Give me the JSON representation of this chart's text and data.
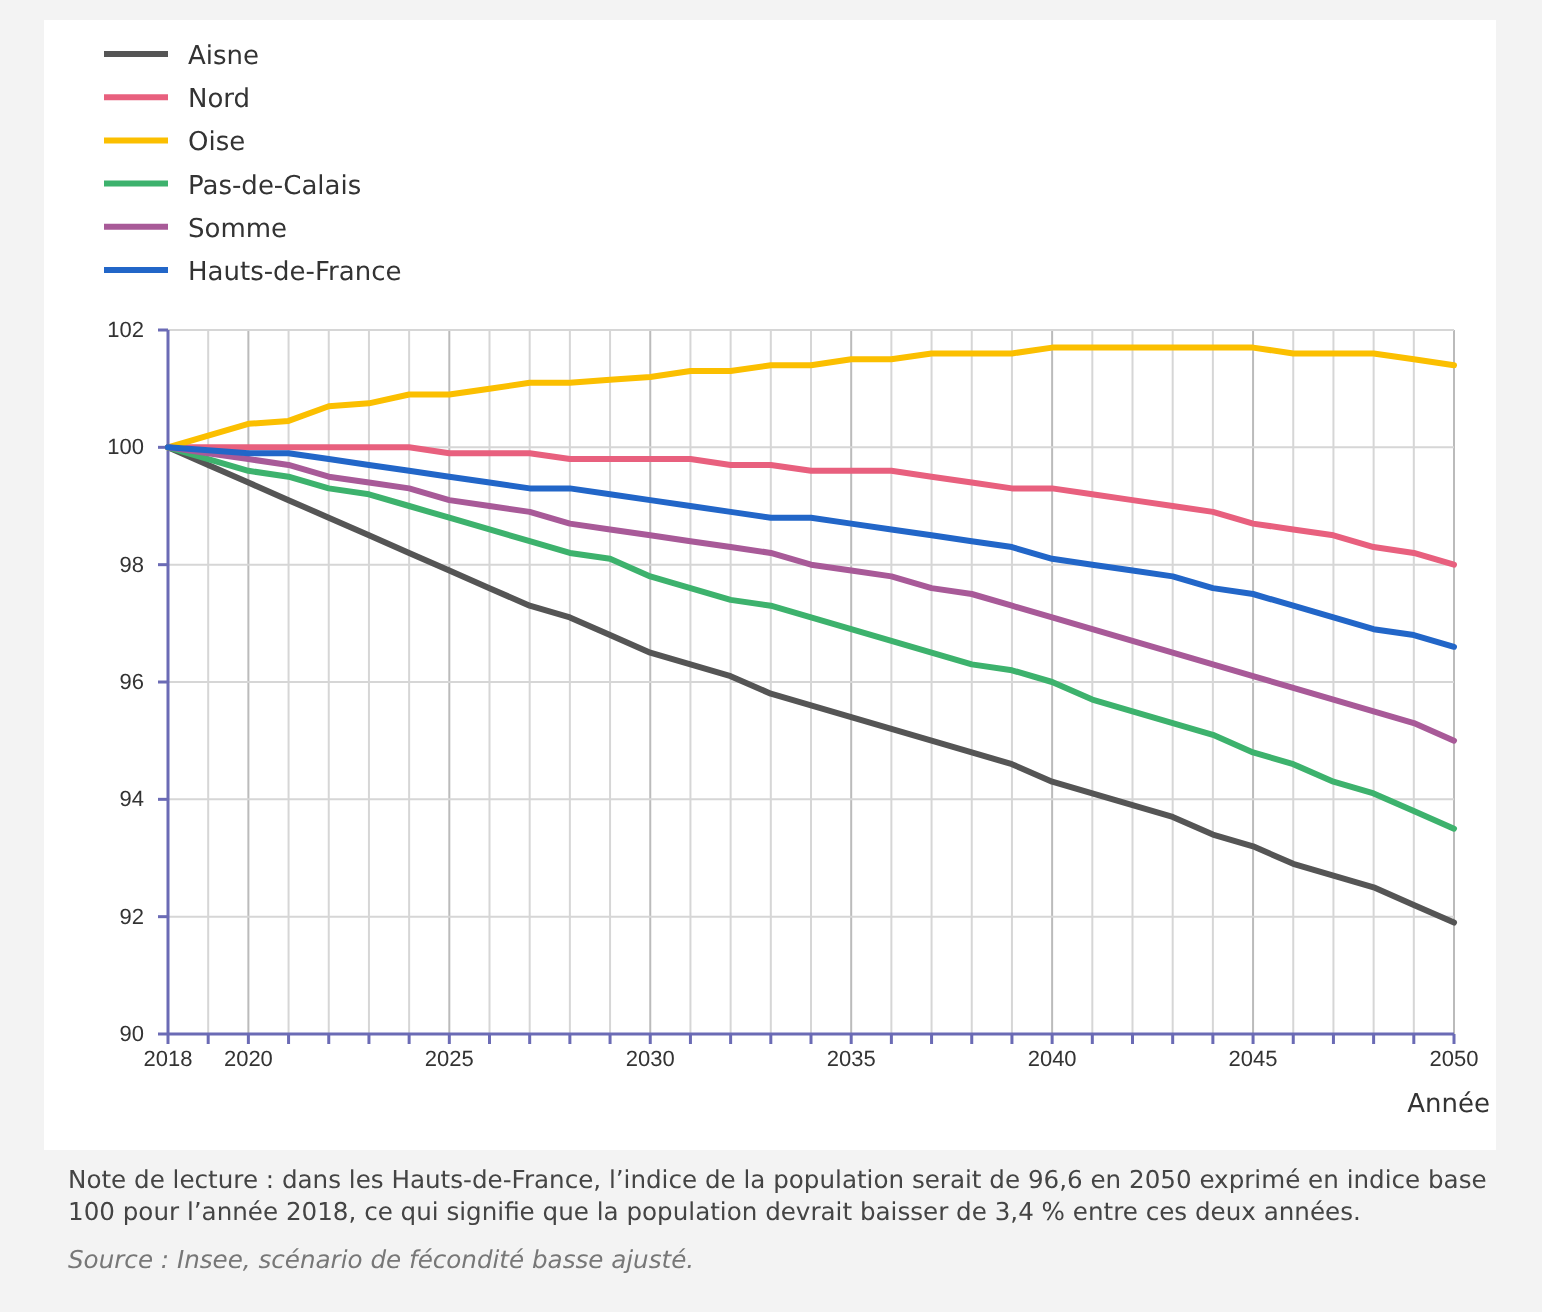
{
  "chart_data": {
    "type": "line",
    "xlabel": "Année",
    "x": [
      2018,
      2019,
      2020,
      2021,
      2022,
      2023,
      2024,
      2025,
      2026,
      2027,
      2028,
      2029,
      2030,
      2031,
      2032,
      2033,
      2034,
      2035,
      2036,
      2037,
      2038,
      2039,
      2040,
      2041,
      2042,
      2043,
      2044,
      2045,
      2046,
      2047,
      2048,
      2049,
      2050
    ],
    "series": [
      {
        "name": "Aisne",
        "color": "#555555",
        "values": [
          100,
          99.7,
          99.4,
          99.1,
          98.8,
          98.5,
          98.2,
          97.9,
          97.6,
          97.3,
          97.1,
          96.8,
          96.5,
          96.3,
          96.1,
          95.8,
          95.6,
          95.4,
          95.2,
          95.0,
          94.8,
          94.6,
          94.3,
          94.1,
          93.9,
          93.7,
          93.4,
          93.2,
          92.9,
          92.7,
          92.5,
          92.2,
          91.9
        ]
      },
      {
        "name": "Nord",
        "color": "#e8607e",
        "values": [
          100,
          100,
          100,
          100,
          100,
          100,
          100,
          99.9,
          99.9,
          99.9,
          99.8,
          99.8,
          99.8,
          99.8,
          99.7,
          99.7,
          99.6,
          99.6,
          99.6,
          99.5,
          99.4,
          99.3,
          99.3,
          99.2,
          99.1,
          99.0,
          98.9,
          98.7,
          98.6,
          98.5,
          98.3,
          98.2,
          98.0
        ]
      },
      {
        "name": "Oise",
        "color": "#fbbf00",
        "values": [
          100,
          100.2,
          100.4,
          100.45,
          100.7,
          100.75,
          100.9,
          100.9,
          101.0,
          101.1,
          101.1,
          101.15,
          101.2,
          101.3,
          101.3,
          101.4,
          101.4,
          101.5,
          101.5,
          101.6,
          101.6,
          101.6,
          101.7,
          101.7,
          101.7,
          101.7,
          101.7,
          101.7,
          101.6,
          101.6,
          101.6,
          101.5,
          101.4
        ]
      },
      {
        "name": "Pas-de-Calais",
        "color": "#3db26d",
        "values": [
          100,
          99.8,
          99.6,
          99.5,
          99.3,
          99.2,
          99.0,
          98.8,
          98.6,
          98.4,
          98.2,
          98.1,
          97.8,
          97.6,
          97.4,
          97.3,
          97.1,
          96.9,
          96.7,
          96.5,
          96.3,
          96.2,
          96.0,
          95.7,
          95.5,
          95.3,
          95.1,
          94.8,
          94.6,
          94.3,
          94.1,
          93.8,
          93.5
        ]
      },
      {
        "name": "Somme",
        "color": "#a85a98",
        "values": [
          100,
          99.9,
          99.8,
          99.7,
          99.5,
          99.4,
          99.3,
          99.1,
          99.0,
          98.9,
          98.7,
          98.6,
          98.5,
          98.4,
          98.3,
          98.2,
          98.0,
          97.9,
          97.8,
          97.6,
          97.5,
          97.3,
          97.1,
          96.9,
          96.7,
          96.5,
          96.3,
          96.1,
          95.9,
          95.7,
          95.5,
          95.3,
          95.0
        ]
      },
      {
        "name": "Hauts-de-France",
        "color": "#2266c8",
        "values": [
          100,
          99.95,
          99.9,
          99.9,
          99.8,
          99.7,
          99.6,
          99.5,
          99.4,
          99.3,
          99.3,
          99.2,
          99.1,
          99.0,
          98.9,
          98.8,
          98.8,
          98.7,
          98.6,
          98.5,
          98.4,
          98.3,
          98.1,
          98.0,
          97.9,
          97.8,
          97.6,
          97.5,
          97.3,
          97.1,
          96.9,
          96.8,
          96.6
        ]
      }
    ],
    "xlim": [
      2018,
      2050
    ],
    "xticks": [
      2018,
      {
        "value": 2019,
        "label": null
      },
      2020,
      {
        "value": 2021,
        "label": null
      },
      {
        "value": 2022,
        "label": null
      },
      {
        "value": 2023,
        "label": null
      },
      {
        "value": 2024,
        "label": null
      },
      2025,
      {
        "value": 2026,
        "label": null
      },
      {
        "value": 2027,
        "label": null
      },
      {
        "value": 2028,
        "label": null
      },
      {
        "value": 2029,
        "label": null
      },
      2030,
      {
        "value": 2031,
        "label": null
      },
      {
        "value": 2032,
        "label": null
      },
      {
        "value": 2033,
        "label": null
      },
      {
        "value": 2034,
        "label": null
      },
      2035,
      {
        "value": 2036,
        "label": null
      },
      {
        "value": 2037,
        "label": null
      },
      {
        "value": 2038,
        "label": null
      },
      {
        "value": 2039,
        "label": null
      },
      2040,
      {
        "value": 2041,
        "label": null
      },
      {
        "value": 2042,
        "label": null
      },
      {
        "value": 2043,
        "label": null
      },
      {
        "value": 2044,
        "label": null
      },
      2045,
      {
        "value": 2046,
        "label": null
      },
      {
        "value": 2047,
        "label": null
      },
      {
        "value": 2048,
        "label": null
      },
      {
        "value": 2049,
        "label": null
      },
      2050
    ],
    "ylim": [
      90,
      102
    ],
    "yticks": [
      90,
      92,
      94,
      96,
      98,
      100,
      102
    ],
    "grid": true,
    "legend": "top left",
    "marker": "none",
    "line_style": "solid",
    "annotations": [
      "Note de lecture : dans les Hauts-de-France, l’indice de la population serait de 96,6 en 2050 exprimé en indice base 100 pour l’année 2018, ce qui signifie que la population devrait baisser de 3,4 % entre ces deux années.",
      "Source : Insee, scénario de fécondité basse ajusté."
    ]
  }
}
